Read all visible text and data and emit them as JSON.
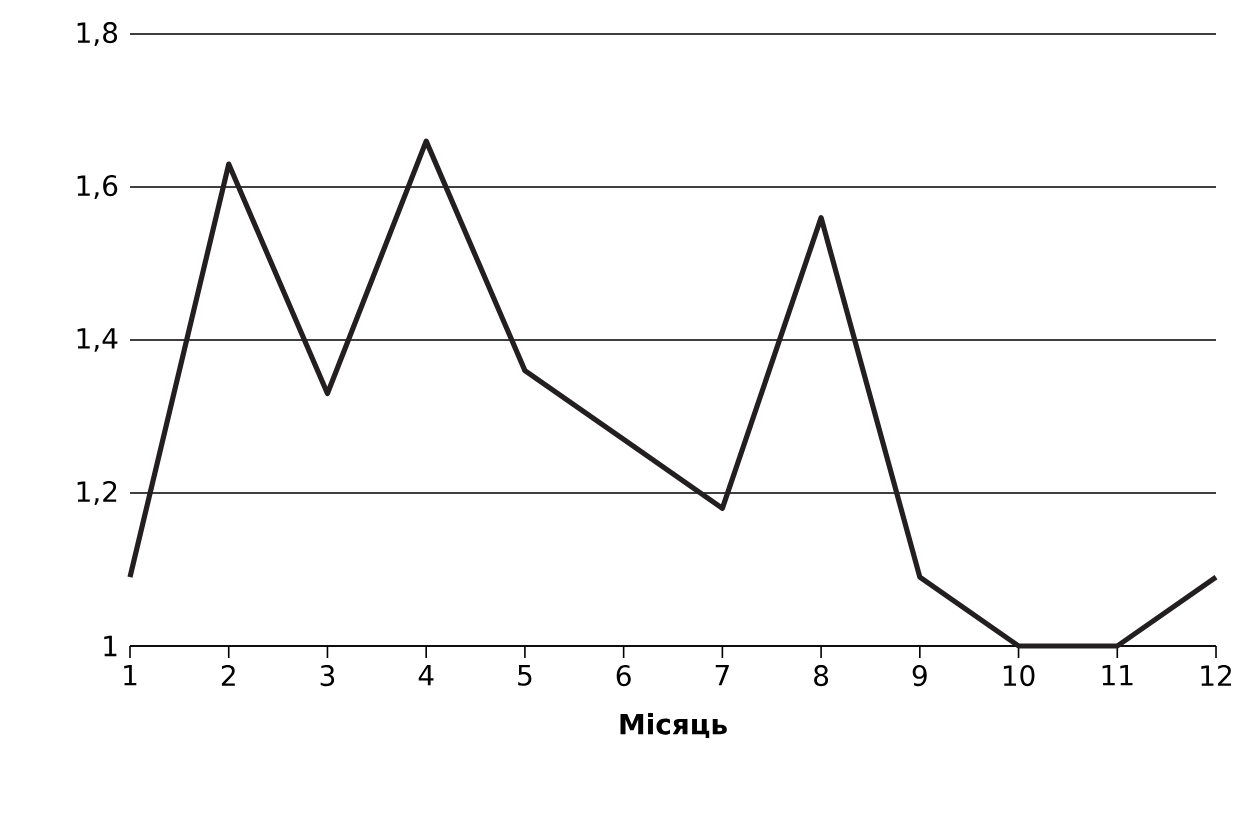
{
  "chart_data": {
    "type": "line",
    "xlabel": "**Місяць**",
    "x": [
      1,
      2,
      3,
      4,
      5,
      6,
      7,
      8,
      9,
      10,
      11,
      12
    ],
    "series": [
      {
        "color": "#231f20",
        "values": [
          1.09,
          1.63,
          1.33,
          1.66,
          1.36,
          1.27,
          1.18,
          1.56,
          1.09,
          1.0,
          1.0,
          1.09
        ]
      }
    ],
    "xlim": [
      1,
      12
    ],
    "xticks": [
      1,
      2,
      3,
      4,
      5,
      6,
      7,
      8,
      9,
      10,
      11,
      12
    ],
    "ylim": [
      1,
      1.8
    ],
    "yticks": [
      {
        "value": 1,
        "label": "1"
      },
      {
        "value": 1.2,
        "label": "1,2"
      },
      {
        "value": 1.4,
        "label": "1,4"
      },
      {
        "value": 1.6,
        "label": "1,6"
      },
      {
        "value": 1.8,
        "label": "1,8"
      }
    ],
    "grid": "y",
    "marker": "none",
    "line_style": "solid"
  }
}
